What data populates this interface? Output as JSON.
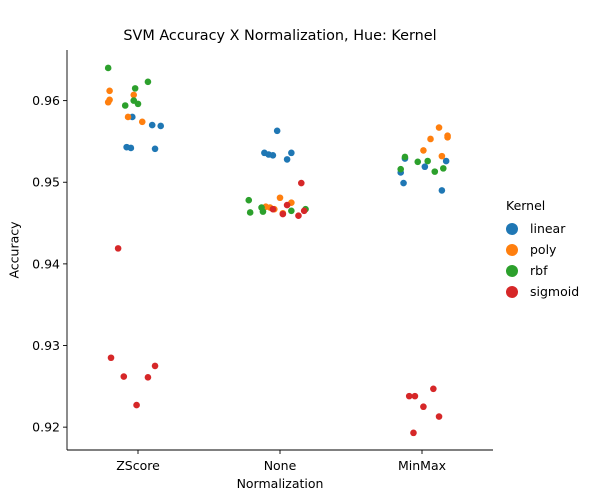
{
  "chart_data": {
    "type": "scatter",
    "title": "SVM Accuracy X Normalization, Hue: Kernel",
    "xlabel": "Normalization",
    "ylabel": "Accuracy",
    "categories": [
      "ZScore",
      "None",
      "MinMax"
    ],
    "ylim": [
      0.9172,
      0.9662
    ],
    "yticks": [
      "0.92",
      "0.93",
      "0.94",
      "0.95",
      "0.96"
    ],
    "ytick_values": [
      0.92,
      0.93,
      0.94,
      0.95,
      0.96
    ],
    "grid": false,
    "legend": {
      "title": "Kernel",
      "placement": "right",
      "entries": [
        "linear",
        "poly",
        "rbf",
        "sigmoid"
      ]
    },
    "colors": {
      "linear": "#1f77b4",
      "poly": "#ff7f0e",
      "rbf": "#2ca02c",
      "sigmoid": "#d62728",
      "axis": "#000000"
    },
    "series": [
      {
        "name": "linear",
        "points": [
          {
            "category": "ZScore",
            "jitter": -0.08,
            "y": 0.9543
          },
          {
            "category": "ZScore",
            "jitter": -0.05,
            "y": 0.9542
          },
          {
            "category": "ZScore",
            "jitter": 0.1,
            "y": 0.957
          },
          {
            "category": "ZScore",
            "jitter": 0.16,
            "y": 0.9569
          },
          {
            "category": "ZScore",
            "jitter": 0.12,
            "y": 0.9541
          },
          {
            "category": "ZScore",
            "jitter": -0.04,
            "y": 0.958
          },
          {
            "category": "None",
            "jitter": -0.11,
            "y": 0.9536
          },
          {
            "category": "None",
            "jitter": -0.05,
            "y": 0.9533
          },
          {
            "category": "None",
            "jitter": -0.02,
            "y": 0.9563
          },
          {
            "category": "None",
            "jitter": 0.08,
            "y": 0.9536
          },
          {
            "category": "None",
            "jitter": 0.05,
            "y": 0.9528
          },
          {
            "category": "None",
            "jitter": -0.08,
            "y": 0.9534
          },
          {
            "category": "MinMax",
            "jitter": -0.15,
            "y": 0.9512
          },
          {
            "category": "MinMax",
            "jitter": -0.12,
            "y": 0.9529
          },
          {
            "category": "MinMax",
            "jitter": -0.13,
            "y": 0.9499
          },
          {
            "category": "MinMax",
            "jitter": 0.02,
            "y": 0.9519
          },
          {
            "category": "MinMax",
            "jitter": 0.14,
            "y": 0.949
          },
          {
            "category": "MinMax",
            "jitter": 0.17,
            "y": 0.9526
          }
        ]
      },
      {
        "name": "poly",
        "points": [
          {
            "category": "ZScore",
            "jitter": -0.2,
            "y": 0.9612
          },
          {
            "category": "ZScore",
            "jitter": -0.2,
            "y": 0.9601
          },
          {
            "category": "ZScore",
            "jitter": -0.03,
            "y": 0.9607
          },
          {
            "category": "ZScore",
            "jitter": -0.07,
            "y": 0.958
          },
          {
            "category": "ZScore",
            "jitter": 0.03,
            "y": 0.9574
          },
          {
            "category": "ZScore",
            "jitter": -0.21,
            "y": 0.9598
          },
          {
            "category": "None",
            "jitter": -0.07,
            "y": 0.9469
          },
          {
            "category": "None",
            "jitter": -0.04,
            "y": 0.9467
          },
          {
            "category": "None",
            "jitter": 0.0,
            "y": 0.9481
          },
          {
            "category": "None",
            "jitter": 0.08,
            "y": 0.9475
          },
          {
            "category": "None",
            "jitter": 0.02,
            "y": 0.9462
          },
          {
            "category": "None",
            "jitter": -0.1,
            "y": 0.947
          },
          {
            "category": "MinMax",
            "jitter": 0.06,
            "y": 0.9553
          },
          {
            "category": "MinMax",
            "jitter": 0.12,
            "y": 0.9567
          },
          {
            "category": "MinMax",
            "jitter": 0.18,
            "y": 0.9557
          },
          {
            "category": "MinMax",
            "jitter": 0.18,
            "y": 0.9555
          },
          {
            "category": "MinMax",
            "jitter": 0.01,
            "y": 0.9539
          },
          {
            "category": "MinMax",
            "jitter": 0.14,
            "y": 0.9532
          }
        ]
      },
      {
        "name": "rbf",
        "points": [
          {
            "category": "ZScore",
            "jitter": -0.21,
            "y": 0.964
          },
          {
            "category": "ZScore",
            "jitter": -0.09,
            "y": 0.9594
          },
          {
            "category": "ZScore",
            "jitter": -0.02,
            "y": 0.9615
          },
          {
            "category": "ZScore",
            "jitter": -0.03,
            "y": 0.96
          },
          {
            "category": "ZScore",
            "jitter": 0.07,
            "y": 0.9623
          },
          {
            "category": "ZScore",
            "jitter": 0.0,
            "y": 0.9596
          },
          {
            "category": "None",
            "jitter": -0.22,
            "y": 0.9478
          },
          {
            "category": "None",
            "jitter": -0.21,
            "y": 0.9463
          },
          {
            "category": "None",
            "jitter": -0.12,
            "y": 0.9464
          },
          {
            "category": "None",
            "jitter": 0.08,
            "y": 0.9465
          },
          {
            "category": "None",
            "jitter": 0.18,
            "y": 0.9467
          },
          {
            "category": "None",
            "jitter": -0.13,
            "y": 0.9469
          },
          {
            "category": "MinMax",
            "jitter": -0.12,
            "y": 0.9531
          },
          {
            "category": "MinMax",
            "jitter": -0.15,
            "y": 0.9516
          },
          {
            "category": "MinMax",
            "jitter": 0.04,
            "y": 0.9526
          },
          {
            "category": "MinMax",
            "jitter": 0.09,
            "y": 0.9513
          },
          {
            "category": "MinMax",
            "jitter": 0.15,
            "y": 0.9517
          },
          {
            "category": "MinMax",
            "jitter": -0.03,
            "y": 0.9525
          }
        ]
      },
      {
        "name": "sigmoid",
        "points": [
          {
            "category": "ZScore",
            "jitter": -0.14,
            "y": 0.9419
          },
          {
            "category": "ZScore",
            "jitter": -0.19,
            "y": 0.9285
          },
          {
            "category": "ZScore",
            "jitter": -0.1,
            "y": 0.9262
          },
          {
            "category": "ZScore",
            "jitter": 0.12,
            "y": 0.9275
          },
          {
            "category": "ZScore",
            "jitter": 0.07,
            "y": 0.9261
          },
          {
            "category": "ZScore",
            "jitter": -0.01,
            "y": 0.9227
          },
          {
            "category": "None",
            "jitter": 0.05,
            "y": 0.9472
          },
          {
            "category": "None",
            "jitter": 0.15,
            "y": 0.9499
          },
          {
            "category": "None",
            "jitter": 0.17,
            "y": 0.9465
          },
          {
            "category": "None",
            "jitter": 0.13,
            "y": 0.9459
          },
          {
            "category": "None",
            "jitter": -0.05,
            "y": 0.9467
          },
          {
            "category": "None",
            "jitter": 0.02,
            "y": 0.9461
          },
          {
            "category": "MinMax",
            "jitter": -0.09,
            "y": 0.9238
          },
          {
            "category": "MinMax",
            "jitter": -0.05,
            "y": 0.9238
          },
          {
            "category": "MinMax",
            "jitter": 0.08,
            "y": 0.9247
          },
          {
            "category": "MinMax",
            "jitter": 0.01,
            "y": 0.9225
          },
          {
            "category": "MinMax",
            "jitter": 0.12,
            "y": 0.9213
          },
          {
            "category": "MinMax",
            "jitter": -0.06,
            "y": 0.9193
          }
        ]
      }
    ]
  }
}
